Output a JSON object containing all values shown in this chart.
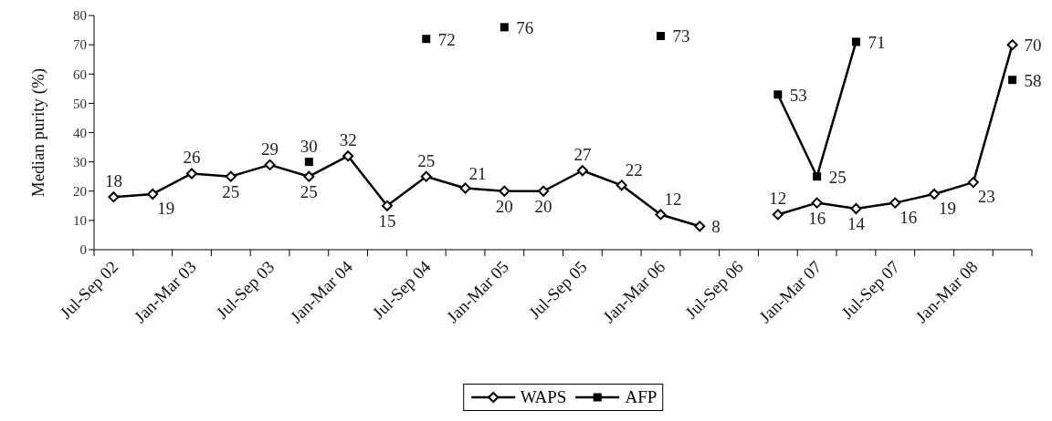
{
  "chart_data": {
    "type": "line",
    "ylabel": "Median purity (%)",
    "categories": [
      "Jul-Sep 02",
      null,
      "Jan-Mar 03",
      null,
      "Jul-Sep 03",
      null,
      "Jan-Mar 04",
      null,
      "Jul-Sep 04",
      null,
      "Jan-Mar 05",
      null,
      "Jul-Sep 05",
      null,
      "Jan-Mar 06",
      null,
      "Jul-Sep 06",
      null,
      "Jan-Mar 07",
      null,
      "Jul-Sep 07",
      null,
      "Jan-Mar 08",
      null
    ],
    "series": [
      {
        "name": "WAPS",
        "color": "#000000",
        "marker": "diamond",
        "values": [
          18,
          19,
          26,
          25,
          29,
          25,
          32,
          15,
          25,
          21,
          20,
          20,
          27,
          22,
          12,
          8,
          null,
          12,
          16,
          14,
          16,
          19,
          23,
          70
        ]
      },
      {
        "name": "AFP",
        "color": "#000000",
        "marker": "square",
        "values": [
          null,
          null,
          null,
          null,
          null,
          30,
          null,
          null,
          72,
          null,
          76,
          null,
          null,
          null,
          73,
          null,
          null,
          53,
          25,
          71,
          null,
          null,
          null,
          58
        ]
      }
    ],
    "ylim": [
      0,
      80
    ],
    "yticks": [
      0,
      10,
      20,
      30,
      40,
      50,
      60,
      70,
      80
    ],
    "legend": "bottom",
    "data_labels": true
  }
}
